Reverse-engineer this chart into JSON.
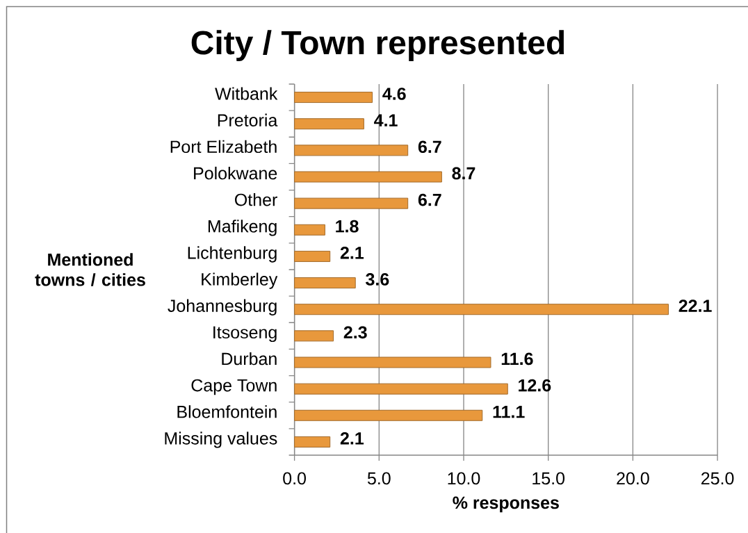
{
  "chart_data": {
    "type": "bar",
    "orientation": "horizontal",
    "title": "City / Town represented",
    "xlabel": "% responses",
    "ylabel": "Mentioned towns / cities",
    "categories": [
      "Witbank",
      "Pretoria",
      "Port Elizabeth",
      "Polokwane",
      "Other",
      "Mafikeng",
      "Lichtenburg",
      "Kimberley",
      "Johannesburg",
      "Itsoseng",
      "Durban",
      "Cape Town",
      "Bloemfontein",
      "Missing values"
    ],
    "values": [
      4.6,
      4.1,
      6.7,
      8.7,
      6.7,
      1.8,
      2.1,
      3.6,
      22.1,
      2.3,
      11.6,
      12.6,
      11.1,
      2.1
    ],
    "color": "#e8983c",
    "data_labels": true,
    "xlim": [
      0,
      25
    ],
    "xticks": [
      {
        "value": 0,
        "label": "0.0"
      },
      {
        "value": 5,
        "label": "5.0"
      },
      {
        "value": 10,
        "label": "10.0"
      },
      {
        "value": 15,
        "label": "15.0"
      },
      {
        "value": 20,
        "label": "20.0"
      },
      {
        "value": 25,
        "label": "25.0"
      }
    ],
    "grid": "x"
  }
}
